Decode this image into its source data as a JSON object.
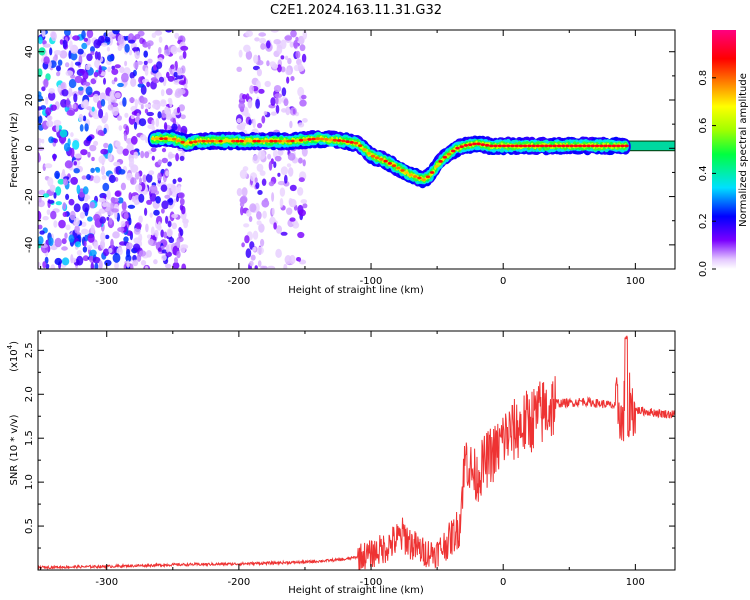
{
  "title": "C2E1.2024.163.11.31.G32",
  "chart_data": [
    {
      "type": "heatmap",
      "xlabel": "Height of straight line (km)",
      "ylabel": "Frequency (Hz)",
      "xlim": [
        -352,
        130
      ],
      "ylim": [
        -50,
        49
      ],
      "x_ticks": [
        -300,
        -200,
        -100,
        0,
        100
      ],
      "x_tick_labels": [
        "-300",
        "-200",
        "-100",
        "0",
        "100"
      ],
      "y_ticks": [
        -40,
        -20,
        0,
        20,
        40
      ],
      "y_tick_labels": [
        "-40",
        "-20",
        "0",
        "20",
        "40"
      ],
      "colorbar": {
        "label": "Normalized spectral amplitude",
        "range": [
          0,
          1
        ],
        "ticks": [
          0.0,
          0.2,
          0.4,
          0.6,
          0.8
        ],
        "tick_labels": [
          "0.0",
          "0.2",
          "0.4",
          "0.6",
          "0.8"
        ],
        "colors": [
          "#ffffff",
          "#e4c8ff",
          "#7a00ff",
          "#0000ff",
          "#00e0ff",
          "#00ff40",
          "#a0ff00",
          "#ffff00",
          "#ff8000",
          "#ff0000",
          "#ff0080"
        ]
      },
      "ridge": {
        "x": [
          -265,
          -250,
          -240,
          -230,
          -220,
          -200,
          -180,
          -160,
          -140,
          -120,
          -110,
          -100,
          -90,
          -80,
          -70,
          -60,
          -55,
          -50,
          -45,
          -40,
          -35,
          -30,
          -20,
          -10,
          0,
          20,
          40,
          60,
          80,
          95,
          130
        ],
        "y": [
          4,
          4,
          2,
          3,
          3,
          3,
          3,
          3,
          4,
          3,
          2,
          -3,
          -5,
          -8,
          -11,
          -13,
          -11,
          -7,
          -4,
          -2,
          0,
          1,
          2,
          1,
          1,
          1,
          1,
          1,
          1,
          1,
          1
        ],
        "peak_value": 0.95
      },
      "noise_regions": [
        {
          "x": [
            -352,
            -240
          ],
          "level": 0.3
        },
        {
          "x": [
            -200,
            -150
          ],
          "level": 0.15
        }
      ]
    },
    {
      "type": "line",
      "xlabel": "Height of straight line (km)",
      "ylabel": "SNR (10 * v/v)",
      "y_scale_label": "(x10",
      "y_scale_exponent": "4",
      "y_scale_suffix": ")",
      "xlim": [
        -352,
        130
      ],
      "ylim": [
        0,
        2.72
      ],
      "x_ticks": [
        -300,
        -200,
        -100,
        0,
        100
      ],
      "x_tick_labels": [
        "-300",
        "-200",
        "-100",
        "0",
        "100"
      ],
      "y_ticks": [
        0.5,
        1.0,
        1.5,
        2.0,
        2.5
      ],
      "y_tick_labels": [
        "0.5",
        "1.0",
        "1.5",
        "2.0",
        "2.5"
      ],
      "series": [
        {
          "color": "#ee3333",
          "x": [
            -352,
            -300,
            -250,
            -200,
            -150,
            -120,
            -100,
            -90,
            -80,
            -75,
            -70,
            -60,
            -50,
            -40,
            -33,
            -30,
            -28,
            -25,
            -20,
            -15,
            -10,
            -5,
            0,
            10,
            20,
            30,
            40,
            50,
            60,
            70,
            80,
            88,
            90,
            93,
            95,
            97,
            100,
            110,
            120,
            130
          ],
          "y": [
            0.03,
            0.04,
            0.06,
            0.07,
            0.09,
            0.12,
            0.18,
            0.25,
            0.35,
            0.4,
            0.3,
            0.2,
            0.2,
            0.35,
            0.5,
            1.1,
            1.3,
            1.15,
            1.05,
            1.2,
            1.3,
            1.35,
            1.5,
            1.6,
            1.7,
            1.8,
            1.9,
            1.9,
            1.92,
            1.9,
            1.88,
            1.85,
            1.6,
            2.1,
            2.0,
            1.85,
            1.82,
            1.8,
            1.78,
            1.77
          ]
        }
      ]
    }
  ]
}
